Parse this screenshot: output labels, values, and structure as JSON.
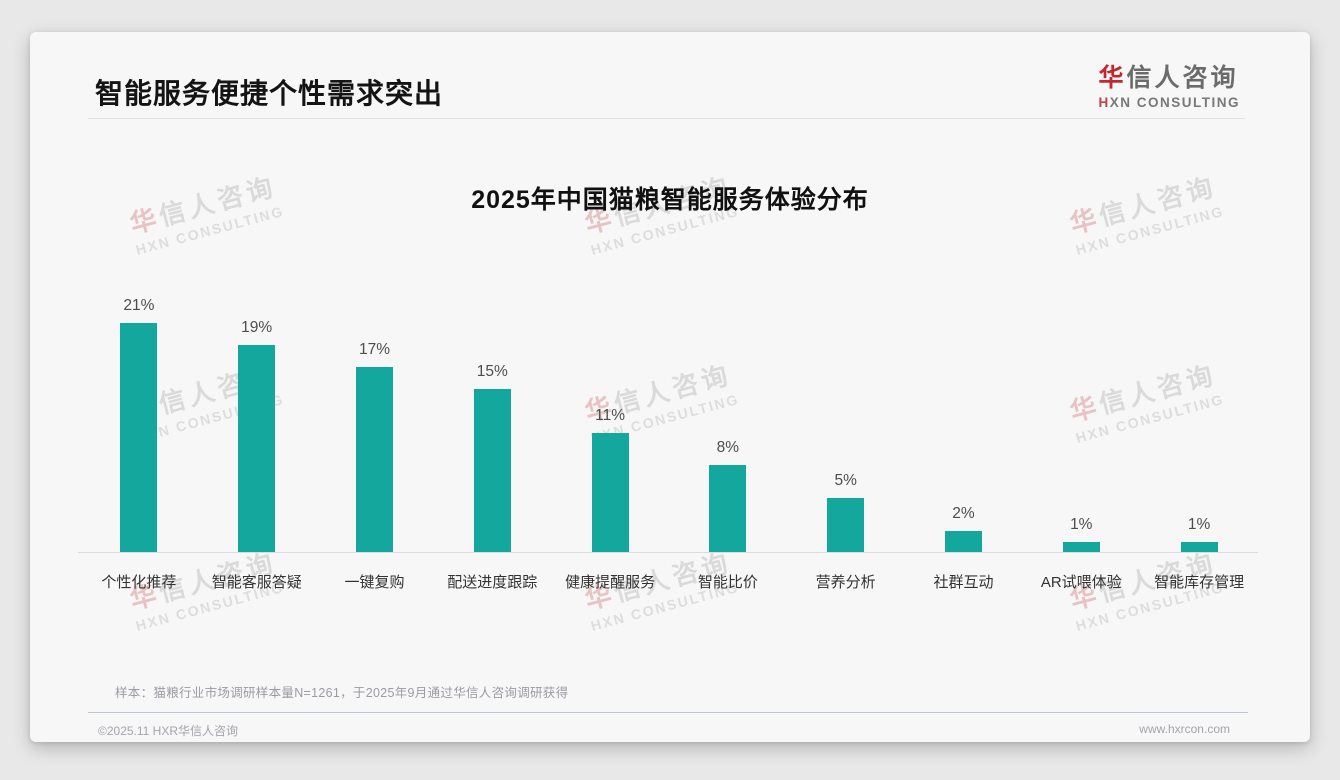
{
  "header": {
    "title": "智能服务便捷个性需求突出"
  },
  "brand": {
    "logo_first_char": "华",
    "logo_rest": "信人咨询",
    "tagline_first": "H",
    "tagline_rest": "XN CONSULTING"
  },
  "watermark": {
    "text_cn_first": "华",
    "text_cn_rest": "信人咨询",
    "text_en": "HXN CONSULTING"
  },
  "chart": {
    "title": "2025年中国猫粮智能服务体验分布"
  },
  "chart_data": {
    "type": "bar",
    "title": "2025年中国猫粮智能服务体验分布",
    "categories": [
      "个性化推荐",
      "智能客服答疑",
      "一键复购",
      "配送进度跟踪",
      "健康提醒服务",
      "智能比价",
      "营养分析",
      "社群互动",
      "AR试喂体验",
      "智能库存管理"
    ],
    "values": [
      21,
      19,
      17,
      15,
      11,
      8,
      5,
      2,
      1,
      1
    ],
    "value_labels": [
      "21%",
      "19%",
      "17%",
      "15%",
      "11%",
      "8%",
      "5%",
      "2%",
      "1%",
      "1%"
    ],
    "unit": "%",
    "xlabel": "",
    "ylabel": "",
    "ylim": [
      0,
      23
    ],
    "grid": false,
    "legend": false,
    "bar_color": "#14A79E"
  },
  "footnote": {
    "sample": "样本：猫粮行业市场调研样本量N=1261，于2025年9月通过华信人咨询调研获得"
  },
  "footer": {
    "copyright": "©2025.11 HXR华信人咨询",
    "website": "www.hxrcon.com"
  }
}
